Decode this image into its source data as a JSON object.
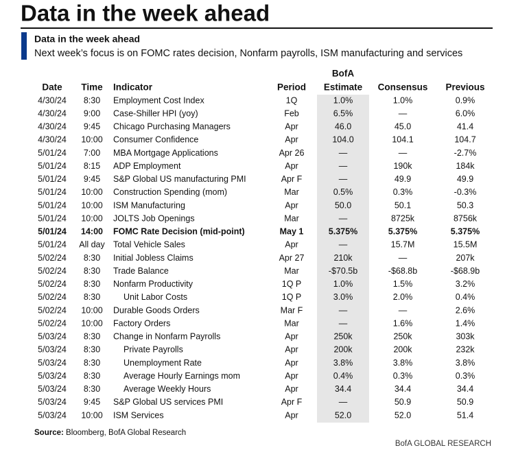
{
  "header": {
    "title": "Data in the week ahead",
    "subtitle": "Data in the week ahead",
    "description": "Next week’s focus is on FOMC rates decision, Nonfarm payrolls, ISM manufacturing and services"
  },
  "table": {
    "columns": [
      "Date",
      "Time",
      "Indicator",
      "Period",
      [
        "BofA",
        "Estimate"
      ],
      "Consensus",
      "Previous"
    ],
    "rows": [
      [
        "4/30/24",
        "8:30",
        "Employment Cost Index",
        "1Q",
        "1.0%",
        "1.0%",
        "0.9%"
      ],
      [
        "4/30/24",
        "9:00",
        "Case-Shiller HPI (yoy)",
        "Feb",
        "6.5%",
        "—",
        "6.0%"
      ],
      [
        "4/30/24",
        "9:45",
        "Chicago Purchasing Managers",
        "Apr",
        "46.0",
        "45.0",
        "41.4"
      ],
      [
        "4/30/24",
        "10:00",
        "Consumer Confidence",
        "Apr",
        "104.0",
        "104.1",
        "104.7"
      ],
      [
        "5/01/24",
        "7:00",
        "MBA Mortgage Applications",
        "Apr 26",
        "—",
        "—",
        "-2.7%"
      ],
      [
        "5/01/24",
        "8:15",
        "ADP Employment",
        "Apr",
        "—",
        "190k",
        "184k"
      ],
      [
        "5/01/24",
        "9:45",
        "S&P Global US manufacturing PMI",
        "Apr F",
        "—",
        "49.9",
        "49.9"
      ],
      [
        "5/01/24",
        "10:00",
        "Construction Spending (mom)",
        "Mar",
        "0.5%",
        "0.3%",
        "-0.3%"
      ],
      [
        "5/01/24",
        "10:00",
        "ISM Manufacturing",
        "Apr",
        "50.0",
        "50.1",
        "50.3"
      ],
      [
        "5/01/24",
        "10:00",
        "JOLTS Job Openings",
        "Mar",
        "—",
        "8725k",
        "8756k"
      ],
      [
        "5/01/24",
        "14:00",
        "FOMC Rate Decision (mid-point)",
        "May 1",
        "5.375%",
        "5.375%",
        "5.375%"
      ],
      [
        "5/01/24",
        "All day",
        "Total Vehicle Sales",
        "Apr",
        "—",
        "15.7M",
        "15.5M"
      ],
      [
        "5/02/24",
        "8:30",
        "Initial Jobless Claims",
        "Apr 27",
        "210k",
        "—",
        "207k"
      ],
      [
        "5/02/24",
        "8:30",
        "Trade Balance",
        "Mar",
        "-$70.5b",
        "-$68.8b",
        "-$68.9b"
      ],
      [
        "5/02/24",
        "8:30",
        "Nonfarm Productivity",
        "1Q P",
        "1.0%",
        "1.5%",
        "3.2%"
      ],
      [
        "5/02/24",
        "8:30",
        "Unit Labor Costs",
        "1Q P",
        "3.0%",
        "2.0%",
        "0.4%"
      ],
      [
        "5/02/24",
        "10:00",
        "Durable Goods Orders",
        "Mar F",
        "—",
        "—",
        "2.6%"
      ],
      [
        "5/02/24",
        "10:00",
        "Factory Orders",
        "Mar",
        "—",
        "1.6%",
        "1.4%"
      ],
      [
        "5/03/24",
        "8:30",
        "Change in Nonfarm Payrolls",
        "Apr",
        "250k",
        "250k",
        "303k"
      ],
      [
        "5/03/24",
        "8:30",
        "Private Payrolls",
        "Apr",
        "200k",
        "200k",
        "232k"
      ],
      [
        "5/03/24",
        "8:30",
        "Unemployment Rate",
        "Apr",
        "3.8%",
        "3.8%",
        "3.8%"
      ],
      [
        "5/03/24",
        "8:30",
        "Average Hourly Earnings mom",
        "Apr",
        "0.4%",
        "0.3%",
        "0.3%"
      ],
      [
        "5/03/24",
        "8:30",
        "Average Weekly Hours",
        "Apr",
        "34.4",
        "34.4",
        "34.4"
      ],
      [
        "5/03/24",
        "9:45",
        "S&P Global US services PMI",
        "Apr F",
        "—",
        "50.9",
        "50.9"
      ],
      [
        "5/03/24",
        "10:00",
        "ISM Services",
        "Apr",
        "52.0",
        "52.0",
        "51.4"
      ]
    ]
  },
  "footer": {
    "source_label": "Source:",
    "source": "Bloomberg, BofA Global Research",
    "brand": "BofA GLOBAL RESEARCH"
  }
}
